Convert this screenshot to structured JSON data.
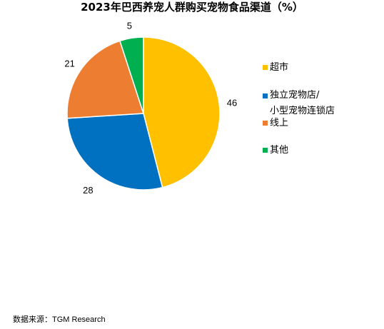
{
  "chart_data": {
    "type": "pie",
    "title": "2023年巴西养宠人群购买宠物食品渠道（%）",
    "categories": [
      "超市",
      "独立宠物店/\n小型宠物连锁店",
      "线上",
      "其他"
    ],
    "values": [
      46,
      28,
      21,
      5
    ],
    "colors": [
      "#FFC000",
      "#0070C0",
      "#ED7D31",
      "#00B050"
    ],
    "legend_position": "right",
    "start_angle_deg": 0,
    "direction": "clockwise"
  },
  "source": "数据来源：TGM Research"
}
